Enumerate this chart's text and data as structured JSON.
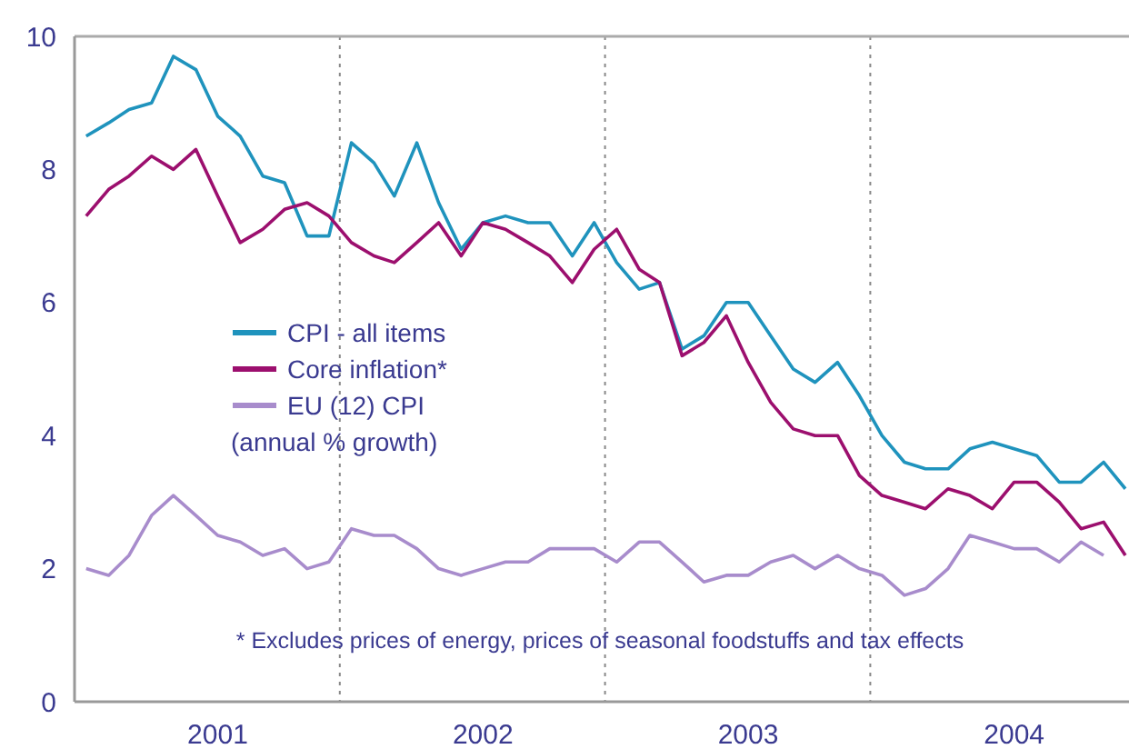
{
  "chart_data": {
    "type": "line",
    "x": [
      "2001-01",
      "2001-02",
      "2001-03",
      "2001-04",
      "2001-05",
      "2001-06",
      "2001-07",
      "2001-08",
      "2001-09",
      "2001-10",
      "2001-11",
      "2001-12",
      "2002-01",
      "2002-02",
      "2002-03",
      "2002-04",
      "2002-05",
      "2002-06",
      "2002-07",
      "2002-08",
      "2002-09",
      "2002-10",
      "2002-11",
      "2002-12",
      "2003-01",
      "2003-02",
      "2003-03",
      "2003-04",
      "2003-05",
      "2003-06",
      "2003-07",
      "2003-08",
      "2003-09",
      "2003-10",
      "2003-11",
      "2003-12",
      "2004-01",
      "2004-02",
      "2004-03",
      "2004-04",
      "2004-05",
      "2004-06",
      "2004-07",
      "2004-08",
      "2004-09",
      "2004-10",
      "2004-11",
      "2004-12"
    ],
    "series": [
      {
        "name": "CPI - all items",
        "color": "#1f93bd",
        "values": [
          8.5,
          8.7,
          8.9,
          9.0,
          9.7,
          9.5,
          8.8,
          8.5,
          7.9,
          7.8,
          7.0,
          7.0,
          8.4,
          8.1,
          7.6,
          8.4,
          7.5,
          6.8,
          7.2,
          7.3,
          7.2,
          7.2,
          6.7,
          7.2,
          6.6,
          6.2,
          6.3,
          5.3,
          5.5,
          6.0,
          6.0,
          5.5,
          5.0,
          4.8,
          5.1,
          4.6,
          4.0,
          3.6,
          3.5,
          3.5,
          3.8,
          3.9,
          3.8,
          3.7,
          3.3,
          3.3,
          3.6,
          3.2
        ]
      },
      {
        "name": "Core inflation*",
        "color": "#9c0f6e",
        "values": [
          7.3,
          7.7,
          7.9,
          8.2,
          8.0,
          8.3,
          7.6,
          6.9,
          7.1,
          7.4,
          7.5,
          7.3,
          6.9,
          6.7,
          6.6,
          6.9,
          7.2,
          6.7,
          7.2,
          7.1,
          6.9,
          6.7,
          6.3,
          6.8,
          7.1,
          6.5,
          6.3,
          5.2,
          5.4,
          5.8,
          5.1,
          4.5,
          4.1,
          4.0,
          4.0,
          3.4,
          3.1,
          3.0,
          2.9,
          3.2,
          3.1,
          2.9,
          3.3,
          3.3,
          3.0,
          2.6,
          2.7,
          2.2
        ]
      },
      {
        "name": "EU (12) CPI",
        "color": "#a88ccc",
        "values": [
          2.0,
          1.9,
          2.2,
          2.8,
          3.1,
          2.8,
          2.5,
          2.4,
          2.2,
          2.3,
          2.0,
          2.1,
          2.6,
          2.5,
          2.5,
          2.3,
          2.0,
          1.9,
          2.0,
          2.1,
          2.1,
          2.3,
          2.3,
          2.3,
          2.1,
          2.4,
          2.4,
          2.1,
          1.8,
          1.9,
          1.9,
          2.1,
          2.2,
          2.0,
          2.2,
          2.0,
          1.9,
          1.6,
          1.7,
          2.0,
          2.5,
          2.4,
          2.3,
          2.3,
          2.1,
          2.4,
          2.2,
          null
        ]
      }
    ],
    "xlim": [
      "2000-12-16",
      "2004-12-01"
    ],
    "xticks": [
      {
        "value": "2001-07-01",
        "label": "2001"
      },
      {
        "value": "2002-07-01",
        "label": "2002"
      },
      {
        "value": "2003-07-01",
        "label": "2003"
      },
      {
        "value": "2004-07-01",
        "label": "2004"
      }
    ],
    "ylim": [
      0,
      10
    ],
    "yticks": [
      0,
      2,
      4,
      6,
      8,
      10
    ],
    "ref_lines": [
      {
        "axis": "x",
        "value": "2001-12-16",
        "color": "#888888",
        "line_style": "dotted"
      },
      {
        "axis": "x",
        "value": "2002-12-16",
        "color": "#888888",
        "line_style": "dotted"
      },
      {
        "axis": "x",
        "value": "2003-12-16",
        "color": "#888888",
        "line_style": "dotted"
      }
    ],
    "annotations": [
      "(annual % growth)",
      "* Excludes prices of energy, prices of seasonal foodstuffs and  tax effects"
    ],
    "legend": "left",
    "grid": false,
    "marker": "none",
    "line_style": "solid"
  }
}
